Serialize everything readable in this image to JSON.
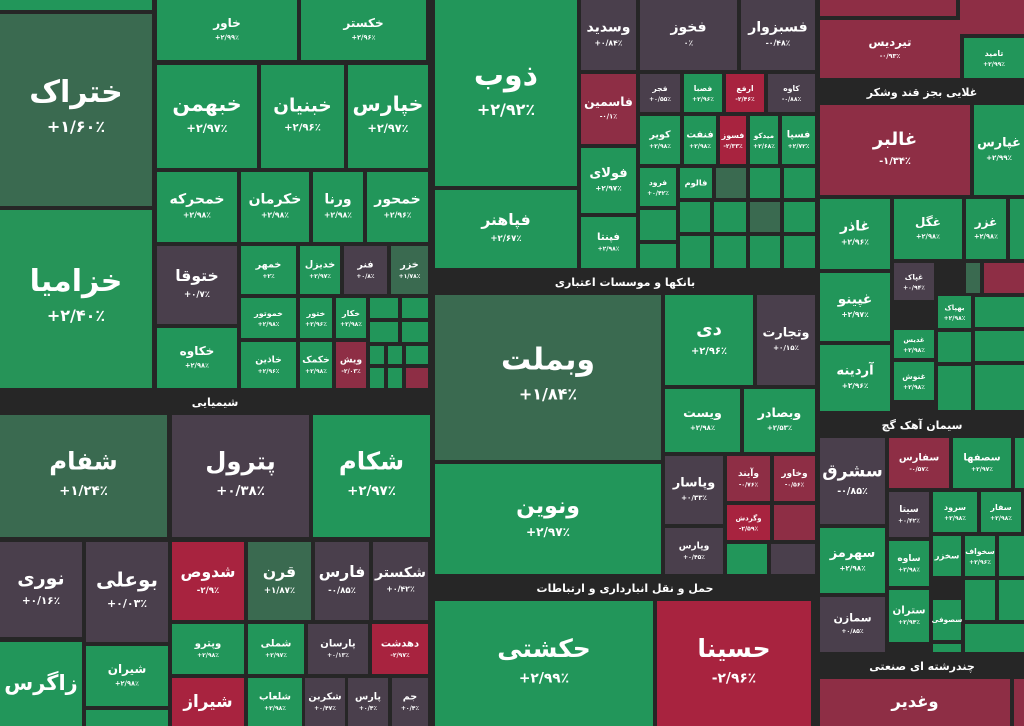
{
  "headers": [
    "شیمیایی",
    "بانکها و موسسات اعتباری",
    "حمل و نقل انبارداری و ارتباطات",
    "غلایی بجز قند وشکر",
    "سیمان آهک گچ",
    "چندرشته ای صنعتی"
  ],
  "tiles": [
    {
      "name": "خاور",
      "change": "+۲/۹۹٪",
      "color": "#22965a"
    },
    {
      "name": "خکستر",
      "change": "+۲/۹۶٪",
      "color": "#22965a"
    },
    {
      "name": "ختراک",
      "change": "+۱/۶۰٪",
      "color": "#3a6a50"
    },
    {
      "name": "خزامیا",
      "change": "+۲/۴۰٪",
      "color": "#269458"
    },
    {
      "name": "خبهمن",
      "change": "+۲/۹۷٪",
      "color": "#22965a"
    },
    {
      "name": "خبنیان",
      "change": "+۲/۹۶٪",
      "color": "#22965a"
    },
    {
      "name": "خپارس",
      "change": "+۲/۹۷٪",
      "color": "#22965a"
    },
    {
      "name": "خمحرکه",
      "change": "+۲/۹۸٪",
      "color": "#22965a"
    },
    {
      "name": "خکرمان",
      "change": "+۲/۹۸٪",
      "color": "#22965a"
    },
    {
      "name": "ورنا",
      "change": "+۲/۹۸٪",
      "color": "#22965a"
    },
    {
      "name": "خمحور",
      "change": "+۲/۹۶٪",
      "color": "#22965a"
    },
    {
      "name": "ختوقا",
      "change": "+۰/۷٪",
      "color": "#4a3f4c"
    },
    {
      "name": "خمهر",
      "change": "+۲٪",
      "color": "#22965a"
    },
    {
      "name": "خدیزل",
      "change": "+۲/۹۷٪",
      "color": "#22965a"
    },
    {
      "name": "فنر",
      "change": "+۰/۸٪",
      "color": "#4a3f4c"
    },
    {
      "name": "خزر",
      "change": "+۱/۷۸٪",
      "color": "#3a6a50"
    },
    {
      "name": "خکاوه",
      "change": "+۲/۹۸٪",
      "color": "#22965a"
    },
    {
      "name": "خموتور",
      "change": "+۲/۹۸٪",
      "color": "#22965a"
    },
    {
      "name": "ختور",
      "change": "+۲/۹۶٪",
      "color": "#22965a"
    },
    {
      "name": "خکار",
      "change": "+۲/۹۸٪",
      "color": "#22965a"
    },
    {
      "name": "خاذین",
      "change": "+۲/۹۶٪",
      "color": "#22965a"
    },
    {
      "name": "خکمک",
      "change": "+۲/۹۸٪",
      "color": "#22965a"
    },
    {
      "name": "ویش",
      "change": "-۲/۰۳٪",
      "color": "#8e2e45"
    },
    {
      "name": "شفام",
      "change": "+۱/۲۴٪",
      "color": "#3a6a50"
    },
    {
      "name": "پترول",
      "change": "+۰/۳۸٪",
      "color": "#4a3f4c"
    },
    {
      "name": "شکام",
      "change": "+۲/۹۷٪",
      "color": "#22965a"
    },
    {
      "name": "نوری",
      "change": "+۰/۱۶٪",
      "color": "#4a3f4c"
    },
    {
      "name": "بوعلی",
      "change": "+۰/۰۳٪",
      "color": "#4a3f4c"
    },
    {
      "name": "زاگرس",
      "change": "",
      "color": "#22965a"
    },
    {
      "name": "شیران",
      "change": "+۲/۹۸٪",
      "color": "#22965a"
    },
    {
      "name": "شدوص",
      "change": "-۲/۹٪",
      "color": "#a8233f"
    },
    {
      "name": "قرن",
      "change": "+۱/۸۷٪",
      "color": "#3a6a50"
    },
    {
      "name": "فارس",
      "change": "-۰/۸۵٪",
      "color": "#4a3f4c"
    },
    {
      "name": "شکستر",
      "change": "+۰/۴۲٪",
      "color": "#4a3f4c"
    },
    {
      "name": "وپترو",
      "change": "+۲/۹۸٪",
      "color": "#22965a"
    },
    {
      "name": "شملی",
      "change": "+۲/۹۷٪",
      "color": "#22965a"
    },
    {
      "name": "پارسان",
      "change": "+۰/۱۳٪",
      "color": "#4a3f4c"
    },
    {
      "name": "دهدشت",
      "change": "-۲/۹۷٪",
      "color": "#a8233f"
    },
    {
      "name": "شیراز",
      "change": "",
      "color": "#a8233f"
    },
    {
      "name": "شلعاب",
      "change": "+۲/۹۸٪",
      "color": "#22965a"
    },
    {
      "name": "شکربن",
      "change": "+۰/۴۷٪",
      "color": "#4a3f4c"
    },
    {
      "name": "پارس",
      "change": "+۰/۴٪",
      "color": "#4a3f4c"
    },
    {
      "name": "جم",
      "change": "+۰/۴٪",
      "color": "#4a3f4c"
    },
    {
      "name": "ذوب",
      "change": "+۲/۹۲٪",
      "color": "#22965a"
    },
    {
      "name": "فپاهنر",
      "change": "+۲/۶۷٪",
      "color": "#22965a"
    },
    {
      "name": "وسدید",
      "change": "+۰/۸۴٪",
      "color": "#4a3f4c"
    },
    {
      "name": "فخوز",
      "change": "۰٪",
      "color": "#4a3f4c"
    },
    {
      "name": "فسبزوار",
      "change": "-۰/۴۸٪",
      "color": "#4a3f4c"
    },
    {
      "name": "فاسمین",
      "change": "-۰/۱٪",
      "color": "#8e2e45"
    },
    {
      "name": "فجر",
      "change": "+۰/۵۵٪",
      "color": "#4a3f4c"
    },
    {
      "name": "فصبا",
      "change": "+۲/۹۶٪",
      "color": "#22965a"
    },
    {
      "name": "ارفع",
      "change": "-۲/۴۶٪",
      "color": "#a8233f"
    },
    {
      "name": "کاوه",
      "change": "-۰/۸۸٪",
      "color": "#4a3f4c"
    },
    {
      "name": "کویر",
      "change": "+۲/۹۸٪",
      "color": "#22965a"
    },
    {
      "name": "فنفت",
      "change": "+۲/۹۸٪",
      "color": "#22965a"
    },
    {
      "name": "فسوز",
      "change": "-۲/۳۳٪",
      "color": "#a8233f"
    },
    {
      "name": "میدکو",
      "change": "+۲/۶۸٪",
      "color": "#22965a"
    },
    {
      "name": "فسپا",
      "change": "+۲/۷۲٪",
      "color": "#22965a"
    },
    {
      "name": "فولای",
      "change": "+۲/۹۷٪",
      "color": "#22965a"
    },
    {
      "name": "فرود",
      "change": "+۰/۴۲٪",
      "color": "#22965a"
    },
    {
      "name": "فالوم",
      "change": "",
      "color": "#22965a"
    },
    {
      "name": "فپنتا",
      "change": "+۲/۹۸٪",
      "color": "#22965a"
    },
    {
      "name": "وبملت",
      "change": "+۱/۸۴٪",
      "color": "#3a6a50"
    },
    {
      "name": "دی",
      "change": "+۲/۹۶٪",
      "color": "#22965a"
    },
    {
      "name": "وتجارت",
      "change": "+۰/۱۵٪",
      "color": "#4a3f4c"
    },
    {
      "name": "ویست",
      "change": "+۲/۹۸٪",
      "color": "#22965a"
    },
    {
      "name": "وبصادر",
      "change": "+۲/۵۳٪",
      "color": "#22965a"
    },
    {
      "name": "ونوین",
      "change": "+۲/۹۷٪",
      "color": "#22965a"
    },
    {
      "name": "وپاسار",
      "change": "+۰/۳۳٪",
      "color": "#4a3f4c"
    },
    {
      "name": "وآیند",
      "change": "-۰/۷۶٪",
      "color": "#8e2e45"
    },
    {
      "name": "وخاور",
      "change": "-۰/۵۶٪",
      "color": "#8e2e45"
    },
    {
      "name": "وگردش",
      "change": "-۲/۵۹٪",
      "color": "#a8233f"
    },
    {
      "name": "وپارس",
      "change": "+۰/۴۵٪",
      "color": "#4a3f4c"
    },
    {
      "name": "حکشتی",
      "change": "+۲/۹۹٪",
      "color": "#22965a"
    },
    {
      "name": "حسینا",
      "change": "-۲/۹۶٪",
      "color": "#a8233f"
    },
    {
      "name": "تیردیس",
      "change": "-۰/۹۳٪",
      "color": "#8e2e45"
    },
    {
      "name": "تامید",
      "change": "+۲/۹۹٪",
      "color": "#22965a"
    },
    {
      "name": "غالبر",
      "change": "-۱/۳۴٪",
      "color": "#8e2e45"
    },
    {
      "name": "غپارس",
      "change": "+۲/۹۹٪",
      "color": "#22965a"
    },
    {
      "name": "غاذر",
      "change": "+۲/۹۶٪",
      "color": "#22965a"
    },
    {
      "name": "غگل",
      "change": "+۲/۹۸٪",
      "color": "#22965a"
    },
    {
      "name": "غزر",
      "change": "+۲/۹۸٪",
      "color": "#22965a"
    },
    {
      "name": "غپاک",
      "change": "+۰/۹۴٪",
      "color": "#4a3f4c"
    },
    {
      "name": "غپینو",
      "change": "+۲/۹۷٪",
      "color": "#22965a"
    },
    {
      "name": "بهپاک",
      "change": "+۲/۹۸٪",
      "color": "#22965a"
    },
    {
      "name": "غدیس",
      "change": "+۲/۹۸٪",
      "color": "#22965a"
    },
    {
      "name": "آردینه",
      "change": "+۲/۹۶٪",
      "color": "#22965a"
    },
    {
      "name": "غنوش",
      "change": "+۲/۹۸٪",
      "color": "#22965a"
    },
    {
      "name": "سشرق",
      "change": "-۰/۸۵٪",
      "color": "#4a3f4c"
    },
    {
      "name": "سفارس",
      "change": "-۰/۵۷٪",
      "color": "#8e2e45"
    },
    {
      "name": "سصفها",
      "change": "+۲/۹۷٪",
      "color": "#22965a"
    },
    {
      "name": "سیتا",
      "change": "+۰/۴۲٪",
      "color": "#4a3f4c"
    },
    {
      "name": "سرود",
      "change": "+۲/۹۸٪",
      "color": "#22965a"
    },
    {
      "name": "سفار",
      "change": "+۲/۹۸٪",
      "color": "#22965a"
    },
    {
      "name": "سهرمز",
      "change": "+۲/۹۸٪",
      "color": "#22965a"
    },
    {
      "name": "ساوه",
      "change": "+۲/۹۸٪",
      "color": "#22965a"
    },
    {
      "name": "سخزر",
      "change": "",
      "color": "#22965a"
    },
    {
      "name": "سخواف",
      "change": "+۲/۹۶٪",
      "color": "#22965a"
    },
    {
      "name": "سمازن",
      "change": "+۰/۸۵٪",
      "color": "#4a3f4c"
    },
    {
      "name": "ستران",
      "change": "+۲/۹۴٪",
      "color": "#22965a"
    },
    {
      "name": "سصوفی",
      "change": "",
      "color": "#22965a"
    },
    {
      "name": "وغدیر",
      "change": "",
      "color": "#8e2e45"
    }
  ]
}
